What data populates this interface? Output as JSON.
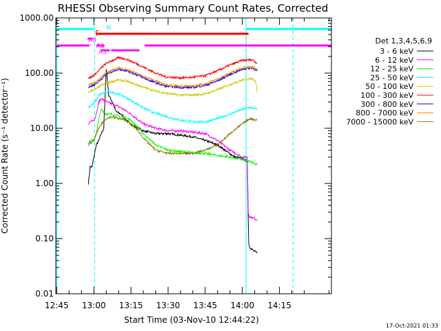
{
  "chart_data": {
    "type": "line",
    "title": "RHESSI Observing Summary Count Rates, Corrected",
    "xlabel": "Start Time (03-Nov-10 12:44:22)",
    "ylabel": "Corrected Count Rate (s⁻¹ detector⁻¹)",
    "footer": "17-Oct-2021 01:33",
    "yscale": "log",
    "ylim": [
      0.01,
      1000
    ],
    "xlim_minutes": [
      -0.37,
      111
    ],
    "x_unit": "minutes after 12:45",
    "y_ticks": [
      {
        "value": 1000,
        "label": "1000.00"
      },
      {
        "value": 100,
        "label": "100.00"
      },
      {
        "value": 10,
        "label": "10.00"
      },
      {
        "value": 1,
        "label": "1.00"
      },
      {
        "value": 0.1,
        "label": "0.10"
      },
      {
        "value": 0.01,
        "label": "0.01"
      }
    ],
    "x_ticks": [
      {
        "value": 0,
        "label": "12:45"
      },
      {
        "value": 15,
        "label": "13:00"
      },
      {
        "value": 30,
        "label": "13:15"
      },
      {
        "value": 45,
        "label": "13:30"
      },
      {
        "value": 60,
        "label": "13:45"
      },
      {
        "value": 75,
        "label": "14:00"
      },
      {
        "value": 90,
        "label": "14:15"
      }
    ],
    "legend": {
      "title": "Det 1,3,4,5,6,9",
      "placement": "right",
      "entries": [
        {
          "label": "3 - 6 keV",
          "color": "#000000"
        },
        {
          "label": "6 - 12 keV",
          "color": "#ff00ff"
        },
        {
          "label": "12 - 25 keV",
          "color": "#00ff00"
        },
        {
          "label": "25 - 50 keV",
          "color": "#00ffff"
        },
        {
          "label": "50 - 100 keV",
          "color": "#cccc00"
        },
        {
          "label": "100 - 300 keV",
          "color": "#ff0000"
        },
        {
          "label": "300 - 800 keV",
          "color": "#0000ff"
        },
        {
          "label": "800 - 7000 keV",
          "color": "#ff8800"
        },
        {
          "label": "7000 - 15000 keV",
          "color": "#8b7a00"
        }
      ]
    },
    "series": [
      {
        "name": "3 - 6 keV",
        "color": "#000000",
        "x": [
          12.8,
          13.5,
          14.3,
          15,
          16,
          17,
          18,
          19,
          20,
          21,
          22.5,
          24,
          26,
          28,
          31,
          35,
          40,
          45,
          50,
          55,
          60,
          65,
          68,
          72,
          75,
          77,
          77.3,
          77.6,
          78,
          79.5,
          81
        ],
        "y": [
          1,
          2,
          2,
          3,
          5,
          6,
          8,
          10,
          120,
          40,
          30,
          20,
          18,
          14,
          11,
          9,
          8,
          8,
          7.5,
          7,
          6,
          5,
          4,
          3,
          2.8,
          2.5,
          0.3,
          0.08,
          0.07,
          0.06,
          0.055
        ]
      },
      {
        "name": "6 - 12 keV",
        "color": "#ff00ff",
        "x": [
          12.8,
          14,
          15,
          16,
          17,
          18,
          19,
          20,
          22,
          24,
          27,
          30,
          35,
          40,
          45,
          50,
          55,
          60,
          65,
          70,
          75,
          77,
          77.4,
          77.8,
          79,
          81
        ],
        "y": [
          12,
          14,
          14,
          18,
          30,
          35,
          32,
          30,
          28,
          26,
          22,
          18,
          12,
          10,
          9,
          9,
          8.5,
          8,
          6,
          4,
          3,
          3,
          0.3,
          0.25,
          0.24,
          0.22
        ]
      },
      {
        "name": "12 - 25 keV",
        "color": "#00ff00",
        "x": [
          12.8,
          14,
          15,
          16,
          17,
          18,
          19,
          20,
          22,
          24,
          27,
          30,
          35,
          40,
          45,
          50,
          55,
          60,
          65,
          70,
          75,
          78,
          81
        ],
        "y": [
          5.5,
          6,
          6,
          8,
          15,
          22,
          20,
          18,
          18,
          17,
          16,
          14,
          8,
          5,
          4,
          3.8,
          3.6,
          3.5,
          3.2,
          3,
          2.7,
          2.5,
          2.2
        ]
      },
      {
        "name": "25 - 50 keV",
        "color": "#00ffff",
        "x": [
          12.8,
          14,
          15,
          16,
          17,
          18,
          20,
          22,
          25,
          28,
          32,
          38,
          45,
          50,
          55,
          60,
          65,
          70,
          75,
          78,
          81
        ],
        "y": [
          24,
          26,
          28,
          32,
          40,
          42,
          45,
          45,
          42,
          36,
          28,
          20,
          16,
          14,
          13,
          13,
          15,
          18,
          22,
          24,
          22
        ]
      },
      {
        "name": "50 - 100 keV",
        "color": "#cccc00",
        "x": [
          12.8,
          14,
          16,
          18,
          20,
          22,
          25,
          28,
          32,
          38,
          44,
          50,
          55,
          60,
          65,
          70,
          75,
          79,
          80.5,
          81
        ],
        "y": [
          45,
          48,
          52,
          60,
          65,
          70,
          75,
          72,
          62,
          50,
          43,
          40,
          40,
          42,
          50,
          62,
          75,
          80,
          70,
          45
        ]
      },
      {
        "name": "100 - 300 keV",
        "color": "#ff0000",
        "x": [
          12.8,
          14,
          16,
          18,
          20,
          22,
          25,
          28,
          32,
          38,
          44,
          50,
          55,
          60,
          65,
          70,
          75,
          79,
          81
        ],
        "y": [
          80,
          85,
          100,
          125,
          150,
          165,
          190,
          180,
          150,
          110,
          85,
          82,
          84,
          90,
          110,
          140,
          170,
          175,
          150
        ]
      },
      {
        "name": "300 - 800 keV",
        "color": "#0000ff",
        "x": [
          12.8,
          14,
          16,
          18,
          20,
          22,
          25,
          28,
          32,
          38,
          44,
          50,
          55,
          60,
          65,
          70,
          75,
          79,
          81
        ],
        "y": [
          55,
          58,
          65,
          78,
          95,
          105,
          118,
          112,
          95,
          72,
          58,
          55,
          55,
          60,
          72,
          95,
          118,
          125,
          110
        ]
      },
      {
        "name": "800 - 7000 keV",
        "color": "#ff8800",
        "x": [
          12.8,
          14,
          16,
          18,
          20,
          22,
          25,
          28,
          32,
          38,
          44,
          50,
          55,
          60,
          65,
          70,
          75,
          79,
          81
        ],
        "y": [
          60,
          63,
          70,
          85,
          100,
          110,
          125,
          118,
          100,
          78,
          62,
          58,
          58,
          64,
          78,
          100,
          125,
          130,
          115
        ]
      },
      {
        "name": "7000 - 15000 keV",
        "color": "#8b7a00",
        "x": [
          12.8,
          14,
          15,
          16,
          18,
          20,
          22,
          25,
          28,
          32,
          36,
          40,
          45,
          50,
          55,
          60,
          65,
          70,
          75,
          78,
          81
        ],
        "y": [
          5,
          5.5,
          6,
          8,
          12,
          15,
          16,
          15,
          14,
          10,
          6,
          4,
          3.5,
          3.5,
          3.5,
          4,
          5,
          8,
          12,
          15,
          14
        ]
      }
    ],
    "vertical_lines": [
      {
        "x": 0,
        "style": "solid",
        "color": "#00ffff"
      },
      {
        "x": 15.3,
        "style": "dashed",
        "color": "#00ffff"
      },
      {
        "x": 76.5,
        "style": "solid",
        "color": "#00ffff"
      },
      {
        "x": 95.5,
        "style": "dashed",
        "color": "#00ffff"
      }
    ],
    "annotation_bars": [
      {
        "label": "N",
        "color": "#00ffff",
        "segments": [
          [
            0,
            15.3
          ],
          [
            76.5,
            111
          ]
        ],
        "level": 1
      },
      {
        "label": "F",
        "color": "#ff0000",
        "segments": [
          [
            16,
            77.5
          ]
        ],
        "level": 2
      },
      {
        "label": "A0",
        "color": "#ff00ff",
        "segments": [
          [
            12.5,
            14.5
          ]
        ],
        "level": 3
      },
      {
        "label": "A1",
        "color": "#ff00ff",
        "segments": [
          [
            0,
            13.2
          ],
          [
            16,
            19.3
          ],
          [
            35.5,
            111
          ]
        ],
        "level": 4
      },
      {
        "label": "A3",
        "color": "#ff00ff",
        "segments": [
          [
            18,
            21.5
          ],
          [
            22,
            33.5
          ]
        ],
        "level": 5
      }
    ]
  }
}
